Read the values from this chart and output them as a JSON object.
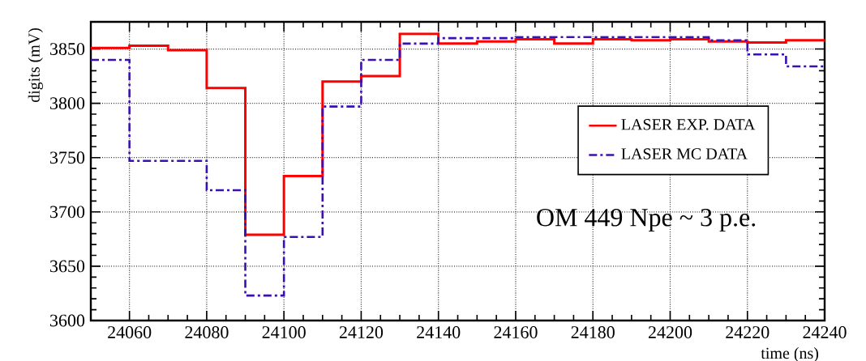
{
  "chart_data": {
    "type": "step",
    "xlabel": "time (ns)",
    "ylabel": "digits (mV)",
    "x": [
      24050,
      24060,
      24070,
      24080,
      24090,
      24100,
      24110,
      24120,
      24130,
      24140,
      24150,
      24160,
      24170,
      24180,
      24190,
      24200,
      24210,
      24220,
      24230,
      24240
    ],
    "series": [
      {
        "name": "LASER EXP. DATA",
        "color": "#ff0000",
        "line_style": "solid",
        "values": [
          3851,
          3853,
          3849,
          3814,
          3679,
          3733,
          3820,
          3825,
          3864,
          3855,
          3857,
          3859,
          3855,
          3859,
          3858,
          3859,
          3857,
          3856,
          3858,
          3858
        ]
      },
      {
        "name": "LASER MC DATA",
        "color": "#3a10b0",
        "line_style": "dashdot",
        "values": [
          3840,
          3747,
          3747,
          3720,
          3623,
          3677,
          3797,
          3840,
          3855,
          3860,
          3860,
          3861,
          3861,
          3861,
          3861,
          3861,
          3858,
          3845,
          3834,
          3834
        ]
      }
    ],
    "xlim": [
      24050,
      24240
    ],
    "ylim": [
      3600,
      3875
    ],
    "xticks": [
      24060,
      24080,
      24100,
      24120,
      24140,
      24160,
      24180,
      24200,
      24220,
      24240
    ],
    "yticks": [
      3600,
      3650,
      3700,
      3750,
      3800,
      3850
    ],
    "grid": true,
    "legend": "right",
    "marker": "none",
    "annotations": [
      "OM 449  Npe ~ 3 p.e."
    ]
  }
}
